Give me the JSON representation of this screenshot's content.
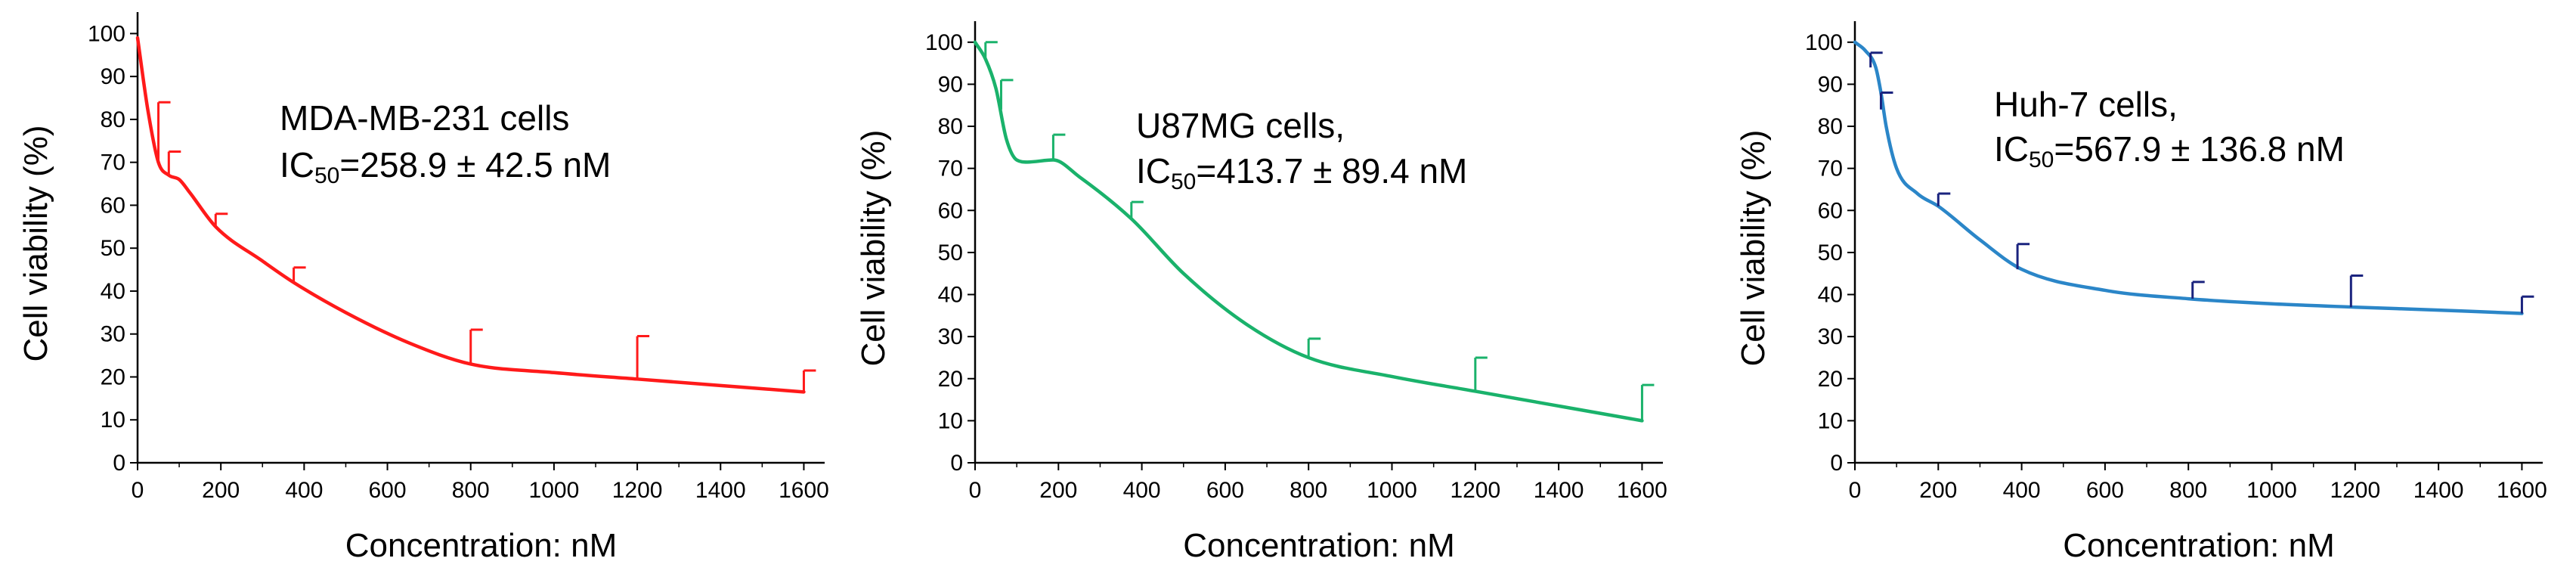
{
  "chart_data": [
    {
      "type": "line",
      "annotation": {
        "line1": "MDA-MB-231 cells",
        "ic_prefix": "IC",
        "ic_sub": "50",
        "ic_value": "=258.9 ± 42.5 nM"
      },
      "xlabel": "Concentration: nM",
      "ylabel": "Cell viability (%)",
      "xlim": [
        0,
        1650
      ],
      "ylim": [
        0,
        105
      ],
      "x_ticks": [
        0,
        200,
        400,
        600,
        800,
        1000,
        1200,
        1400,
        1600
      ],
      "x_tick_labels": [
        "0",
        "200",
        "400",
        "600",
        "800",
        "1000",
        "1200",
        "1400",
        "1600"
      ],
      "y_ticks": [
        0,
        10,
        20,
        30,
        40,
        50,
        60,
        70,
        80,
        90,
        100
      ],
      "y_tick_labels": [
        "0",
        "10",
        "20",
        "30",
        "40",
        "50",
        "60",
        "70",
        "80",
        "90",
        "100"
      ],
      "color": "#ff1a1a",
      "curve": {
        "x": [
          0,
          25,
          50,
          75,
          100,
          125,
          187.5,
          300,
          375,
          500,
          650,
          800,
          1000,
          1200,
          1400,
          1600
        ],
        "y": [
          99,
          82,
          70,
          67,
          66,
          63,
          55,
          47,
          42,
          35,
          28,
          23,
          21,
          19.5,
          18,
          16.5
        ]
      },
      "error_bars": [
        {
          "x": 50,
          "y": 70,
          "err": 14
        },
        {
          "x": 75,
          "y": 67,
          "err": 5.5
        },
        {
          "x": 187.5,
          "y": 55,
          "err": 3
        },
        {
          "x": 375,
          "y": 42,
          "err": 3.5
        },
        {
          "x": 800,
          "y": 23,
          "err": 8
        },
        {
          "x": 1200,
          "y": 19.5,
          "err": 10
        },
        {
          "x": 1600,
          "y": 16.5,
          "err": 5
        }
      ]
    },
    {
      "type": "line",
      "annotation": {
        "line1": "U87MG cells,",
        "ic_prefix": "IC",
        "ic_sub": "50",
        "ic_value": "=413.7 ± 89.4 nM"
      },
      "xlabel": "Concentration: nM",
      "ylabel": "Cell viability (%)",
      "xlim": [
        0,
        1650
      ],
      "ylim": [
        0,
        105
      ],
      "x_ticks": [
        0,
        200,
        400,
        600,
        800,
        1000,
        1200,
        1400,
        1600
      ],
      "x_tick_labels": [
        "0",
        "200",
        "400",
        "600",
        "800",
        "1000",
        "1200",
        "1400",
        "1600"
      ],
      "y_ticks": [
        0,
        10,
        20,
        30,
        40,
        50,
        60,
        70,
        80,
        90,
        100
      ],
      "y_tick_labels": [
        "0",
        "10",
        "20",
        "30",
        "40",
        "50",
        "60",
        "70",
        "80",
        "90",
        "100"
      ],
      "color": "#1ab26b",
      "curve": {
        "x": [
          0,
          25,
          50,
          75,
          100,
          125,
          187.5,
          250,
          375,
          500,
          650,
          800,
          1000,
          1200,
          1400,
          1600
        ],
        "y": [
          100,
          96,
          89,
          77,
          72,
          71.5,
          72,
          68,
          58,
          45,
          33,
          25,
          20.5,
          17,
          13.5,
          10
        ]
      },
      "error_bars": [
        {
          "x": 25,
          "y": 96,
          "err": 4
        },
        {
          "x": 62.5,
          "y": 84,
          "err": 7
        },
        {
          "x": 187.5,
          "y": 72,
          "err": 6
        },
        {
          "x": 375,
          "y": 58,
          "err": 4
        },
        {
          "x": 800,
          "y": 25,
          "err": 4.5
        },
        {
          "x": 1200,
          "y": 17,
          "err": 8
        },
        {
          "x": 1600,
          "y": 10,
          "err": 8.5
        }
      ]
    },
    {
      "type": "line",
      "annotation": {
        "line1": "Huh-7 cells,",
        "ic_prefix": "IC",
        "ic_sub": "50",
        "ic_value": "=567.9 ± 136.8 nM"
      },
      "xlabel": "Concentration: nM",
      "ylabel": "Cell viability (%)",
      "xlim": [
        0,
        1650
      ],
      "ylim": [
        0,
        105
      ],
      "x_ticks": [
        0,
        200,
        400,
        600,
        800,
        1000,
        1200,
        1400,
        1600
      ],
      "x_tick_labels": [
        "0",
        "200",
        "400",
        "600",
        "800",
        "1000",
        "1200",
        "1400",
        "1600"
      ],
      "y_ticks": [
        0,
        10,
        20,
        30,
        40,
        50,
        60,
        70,
        80,
        90,
        100
      ],
      "y_tick_labels": [
        "0",
        "10",
        "20",
        "30",
        "40",
        "50",
        "60",
        "70",
        "80",
        "90",
        "100"
      ],
      "color": "#2b86c8",
      "error_color": "#1a237e",
      "curve": {
        "x": [
          0,
          25,
          50,
          62.5,
          75,
          100,
          150,
          200,
          300,
          400,
          600,
          800,
          1000,
          1200,
          1400,
          1600
        ],
        "y": [
          100,
          98,
          94,
          88,
          80,
          70,
          64,
          61,
          53,
          46,
          41,
          39,
          37.8,
          37,
          36.3,
          35.5
        ]
      },
      "error_bars": [
        {
          "x": 37.5,
          "y": 94,
          "err": 3.5
        },
        {
          "x": 62.5,
          "y": 84,
          "err": 4
        },
        {
          "x": 200,
          "y": 61,
          "err": 3
        },
        {
          "x": 390,
          "y": 46,
          "err": 6
        },
        {
          "x": 810,
          "y": 39,
          "err": 4
        },
        {
          "x": 1190,
          "y": 37,
          "err": 7.5
        },
        {
          "x": 1600,
          "y": 35.5,
          "err": 4
        }
      ]
    }
  ]
}
